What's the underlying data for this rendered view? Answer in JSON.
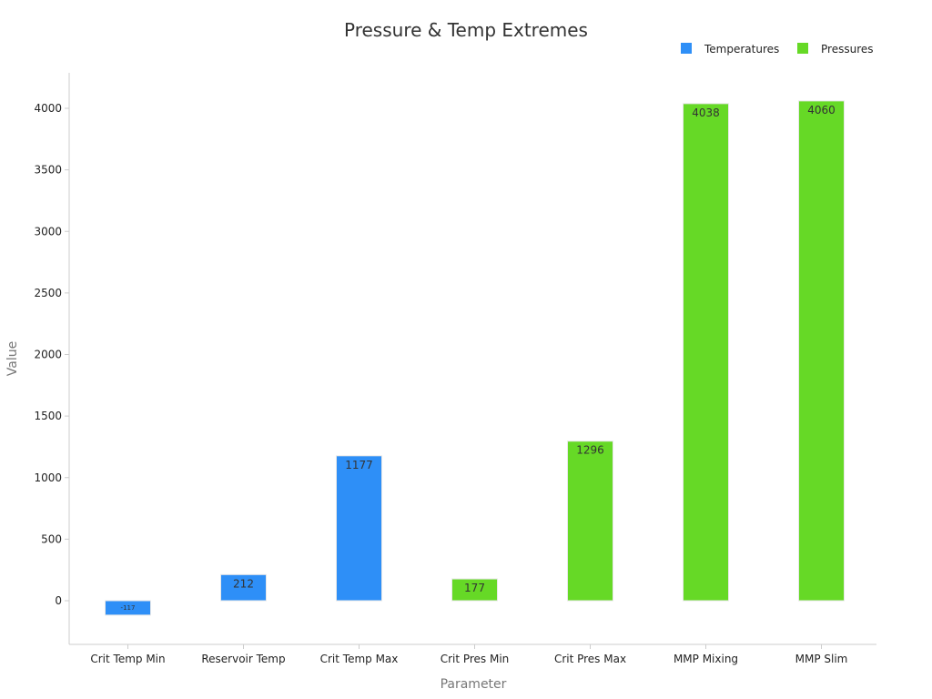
{
  "chart_data": {
    "type": "bar",
    "title": "Pressure & Temp Extremes",
    "xlabel": "Parameter",
    "ylabel": "Value",
    "categories": [
      "Crit Temp Min",
      "Reservoir Temp",
      "Crit Temp Max",
      "Crit Pres Min",
      "Crit Pres Max",
      "MMP Mixing",
      "MMP Slim"
    ],
    "series": [
      {
        "name": "Temperatures",
        "color": "#2e8ff7",
        "values": [
          -117,
          212,
          1177,
          null,
          null,
          null,
          null
        ]
      },
      {
        "name": "Pressures",
        "color": "#66d926",
        "values": [
          null,
          null,
          null,
          177,
          1296,
          4038,
          4060
        ]
      }
    ],
    "ylim": [
      -340,
      4300
    ],
    "yticks": [
      0,
      500,
      1000,
      1500,
      2000,
      2500,
      3000,
      3500,
      4000
    ],
    "grid": false,
    "legend": "top-right"
  }
}
